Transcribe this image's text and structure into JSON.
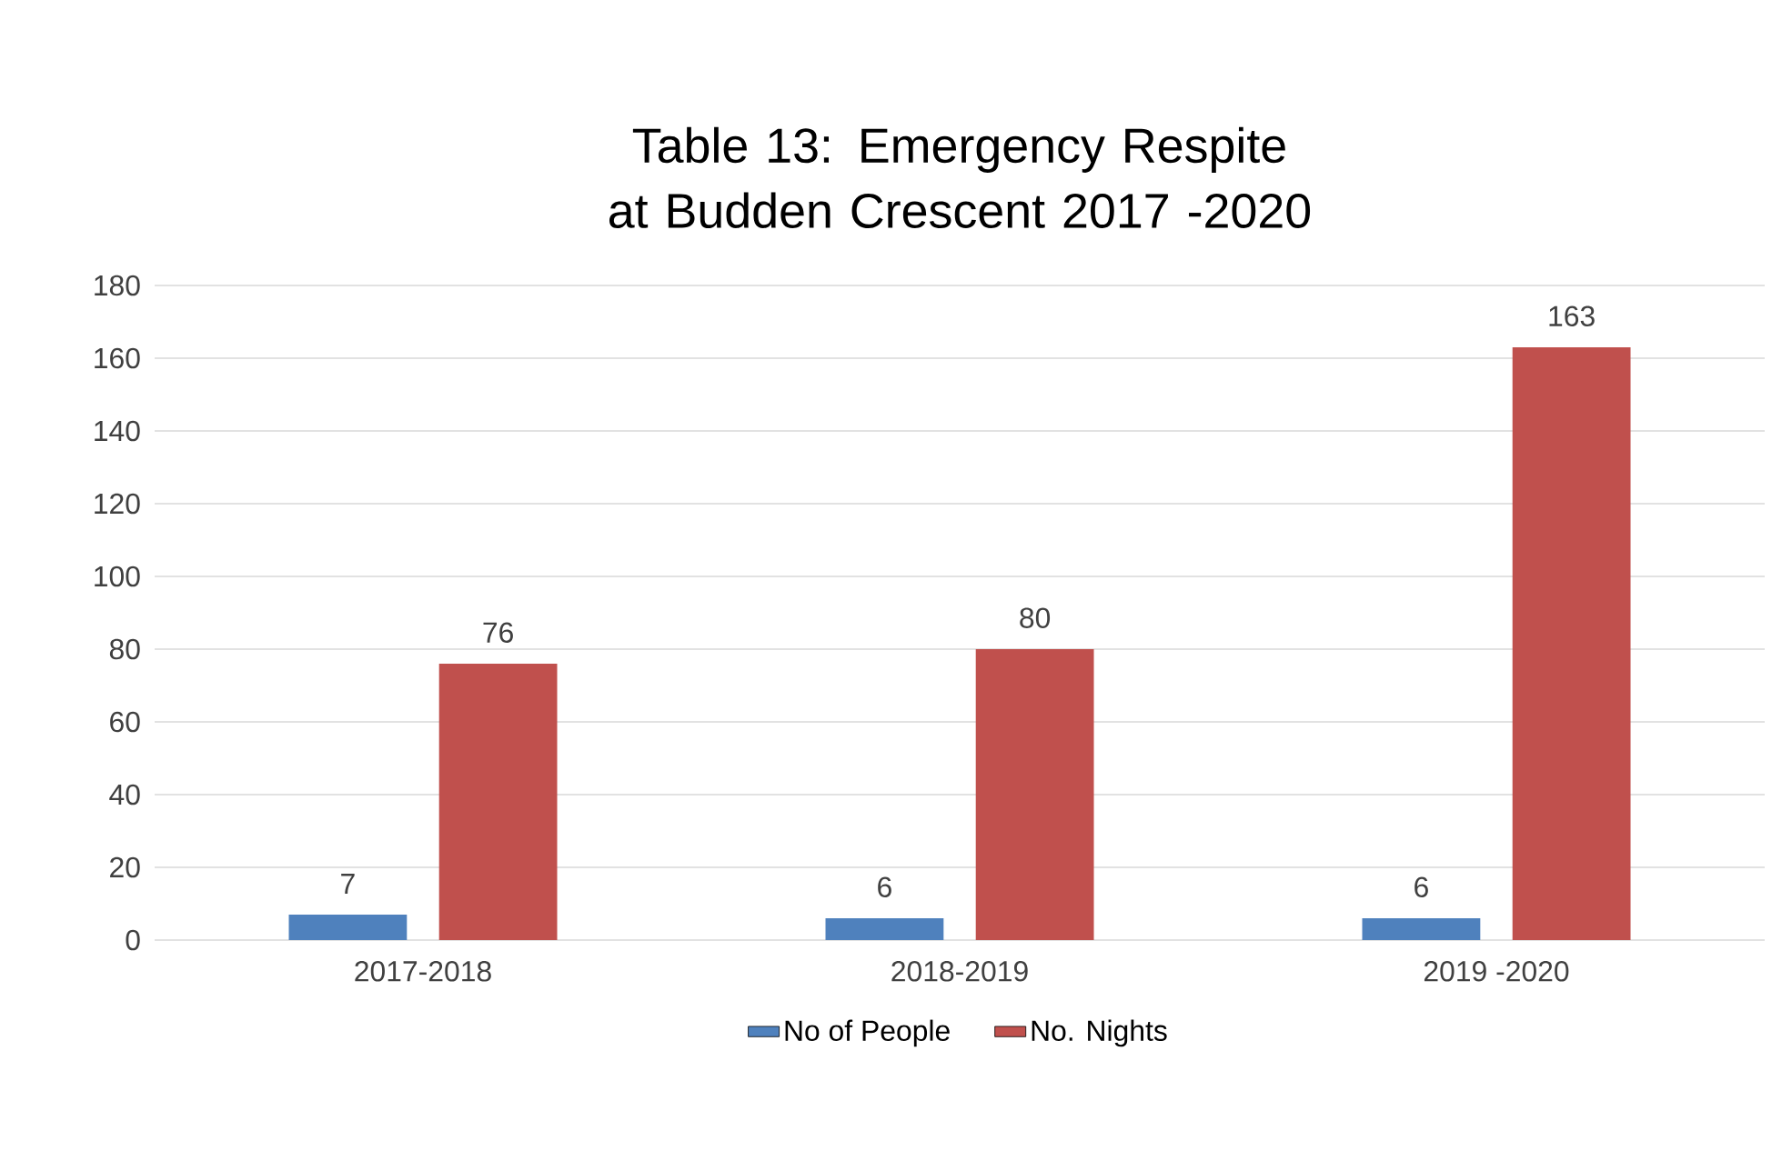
{
  "chart_data": {
    "type": "bar",
    "title": "Table 13:  Emergency Respite at Budden Crescent 2017 -2020",
    "categories": [
      "2017-2018",
      "2018-2019",
      "2019 -2020"
    ],
    "series": [
      {
        "name": "No of People",
        "color": "#4f81bd",
        "values": [
          7,
          6,
          6
        ]
      },
      {
        "name": "No. Nights",
        "color": "#c0504d",
        "values": [
          76,
          80,
          163
        ]
      }
    ],
    "ylim": [
      0,
      180
    ],
    "yticks": [
      0,
      20,
      40,
      60,
      80,
      100,
      120,
      140,
      160,
      180
    ],
    "grid": "y",
    "legend": "bottom",
    "data_labels": true
  }
}
